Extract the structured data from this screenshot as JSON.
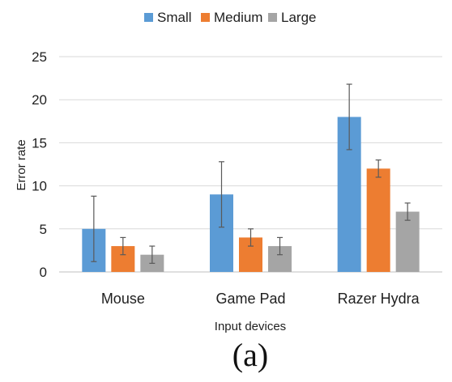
{
  "chart_data": {
    "type": "bar",
    "categories": [
      "Mouse",
      "Game Pad",
      "Razer Hydra"
    ],
    "series": [
      {
        "name": "Small",
        "color": "#5b9bd5",
        "values": [
          5,
          9,
          18
        ],
        "error": [
          3.8,
          3.8,
          3.8
        ]
      },
      {
        "name": "Medium",
        "color": "#ed7d31",
        "values": [
          3,
          4,
          12
        ],
        "error": [
          1.0,
          1.0,
          1.0
        ]
      },
      {
        "name": "Large",
        "color": "#a5a5a5",
        "values": [
          2,
          3,
          7
        ],
        "error": [
          1.0,
          1.0,
          1.0
        ]
      }
    ],
    "xlabel": "Input devices",
    "ylabel": "Error rate",
    "ylim": [
      0,
      25
    ],
    "yticks": [
      0,
      5,
      10,
      15,
      20,
      25
    ],
    "grid": true,
    "legend_position": "top-center"
  },
  "caption": "(a)"
}
